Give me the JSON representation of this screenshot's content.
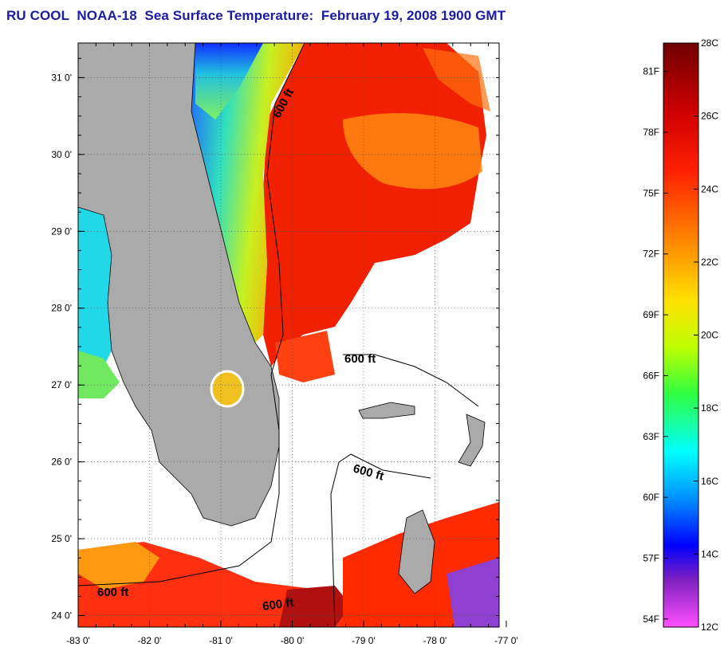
{
  "title": "RU COOL  NOAA-18  Sea Surface Temperature:  February 19, 2008 1900 GMT",
  "map": {
    "lon_ticks": [
      "-83 0'",
      "-82 0'",
      "-81 0'",
      "-80 0'",
      "-79 0'",
      "-78 0'",
      "-77 0'"
    ],
    "lat_ticks": [
      "31 0'",
      "30 0'",
      "29 0'",
      "28 0'",
      "27 0'",
      "26 0'",
      "25 0'",
      "24 0'"
    ],
    "lon_values": [
      -83,
      -82,
      -81,
      -80,
      -79,
      -78,
      -77
    ],
    "lat_values": [
      31,
      30,
      29,
      28,
      27,
      26,
      25,
      24
    ],
    "lon_range": [
      -83,
      -77.1
    ],
    "lat_range": [
      23.85,
      31.45
    ],
    "grid": "dotted",
    "contour_labels": [
      "600 ft",
      "600 ft",
      "600 ft",
      "600 ft",
      "600 ft"
    ],
    "colors": {
      "land": "#aaaaaa",
      "cloud": "#ffffff",
      "contour": "#000000"
    }
  },
  "colorbar": {
    "fahrenheit_labels": [
      "81F",
      "78F",
      "75F",
      "72F",
      "69F",
      "66F",
      "63F",
      "60F",
      "57F",
      "54F"
    ],
    "celsius_labels": [
      "28C",
      "26C",
      "24C",
      "22C",
      "20C",
      "18C",
      "16C",
      "14C",
      "12C"
    ],
    "range_c": [
      12,
      28
    ],
    "gradient": [
      "#800000",
      "#ff0000",
      "#ff8000",
      "#ffff00",
      "#00ff00",
      "#00ffff",
      "#0080ff",
      "#0000ff",
      "#8000c0",
      "#ff50ff"
    ]
  }
}
